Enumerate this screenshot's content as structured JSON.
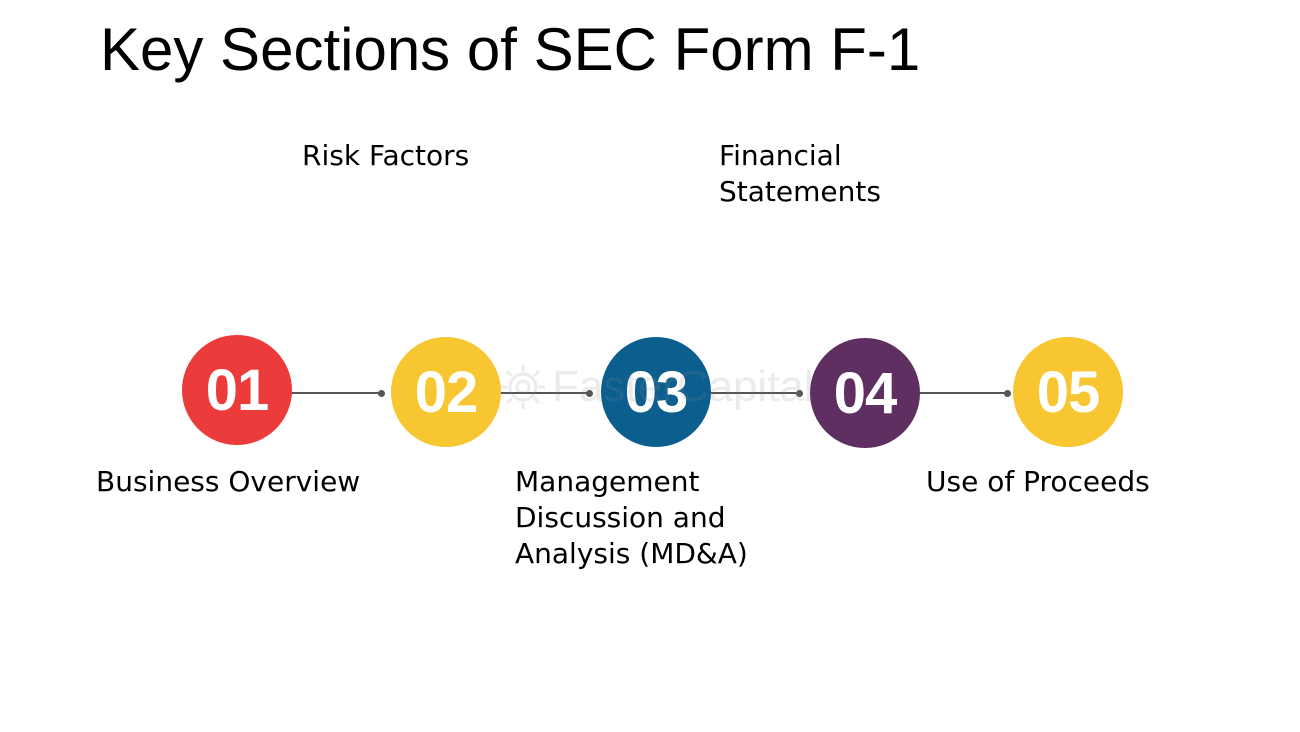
{
  "title": "Key Sections of SEC Form F-1",
  "steps": [
    {
      "number": "01",
      "label": "Business Overview",
      "color": "#EC3B3B"
    },
    {
      "number": "02",
      "label": "Risk Factors",
      "color": "#F7C631"
    },
    {
      "number": "03",
      "label": "Management Discussion and Analysis (MD&A)",
      "color": "#0B5E8E"
    },
    {
      "number": "04",
      "label": "Financial Statements",
      "color": "#5E2F60"
    },
    {
      "number": "05",
      "label": "Use of Proceeds",
      "color": "#F7C631"
    }
  ],
  "watermark": {
    "text": "FasterCapital",
    "icon": "gear-icon"
  }
}
